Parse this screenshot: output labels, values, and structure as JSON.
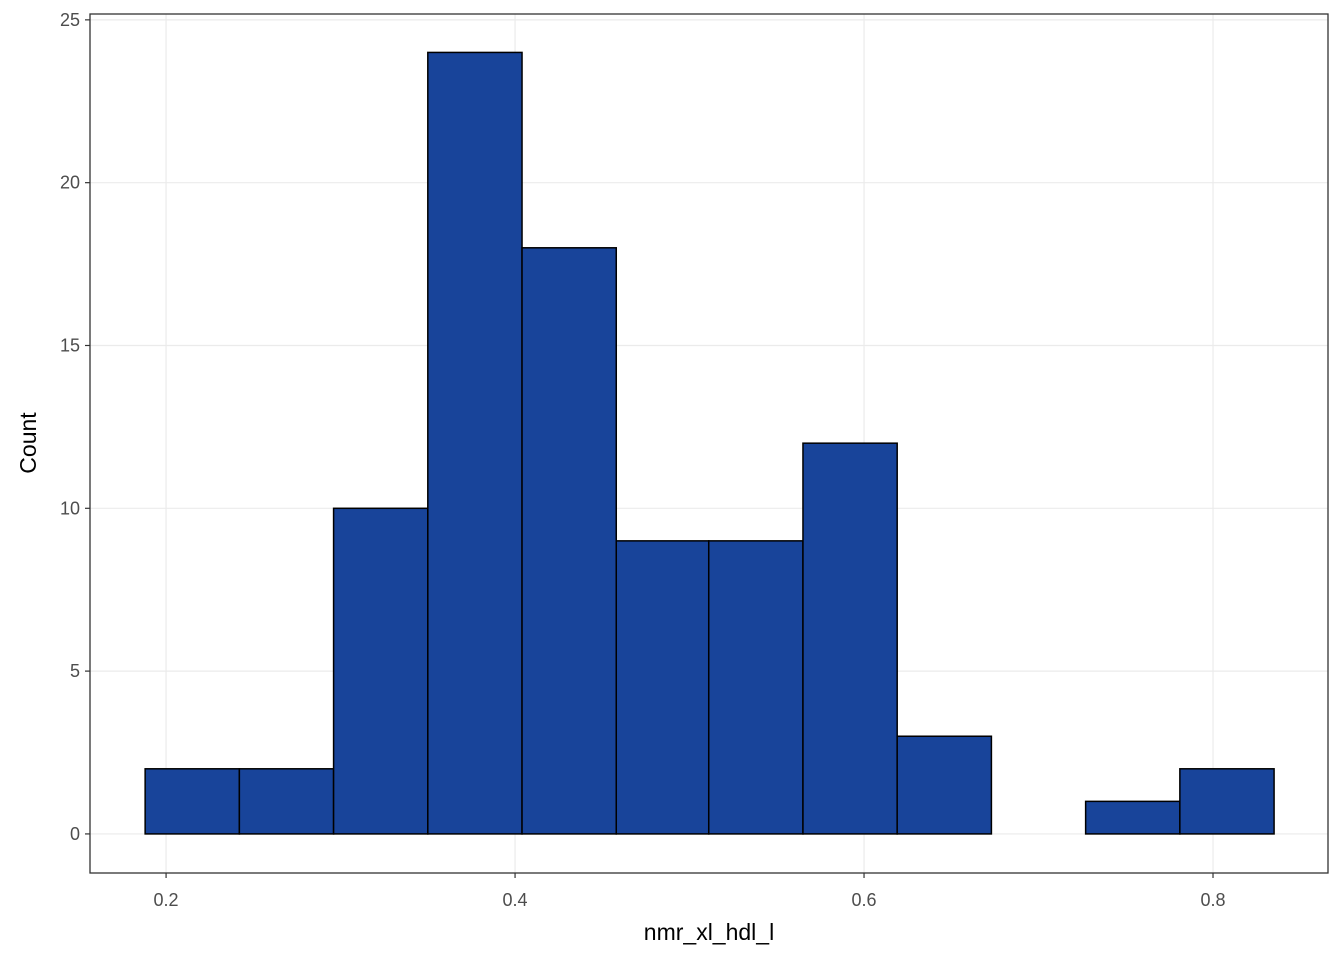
{
  "chart_data": {
    "type": "histogram",
    "x_label": "nmr_xl_hdl_l",
    "y_label": "Count",
    "bins": [
      0.188,
      0.242,
      0.296,
      0.35,
      0.404,
      0.458,
      0.511,
      0.565,
      0.619,
      0.673,
      0.727,
      0.781,
      0.835
    ],
    "values": [
      2,
      2,
      10,
      24,
      18,
      9,
      9,
      12,
      3,
      0,
      1,
      2
    ],
    "color": "#18449a",
    "edge_color": "#000000",
    "xlim": [
      0.1564,
      0.8659
    ],
    "xticks": [
      0.2,
      0.4,
      0.6,
      0.8
    ],
    "ylim": [
      -1.2,
      25.18
    ],
    "yticks": [
      0,
      5,
      10,
      15,
      20,
      25
    ],
    "grid": true
  }
}
